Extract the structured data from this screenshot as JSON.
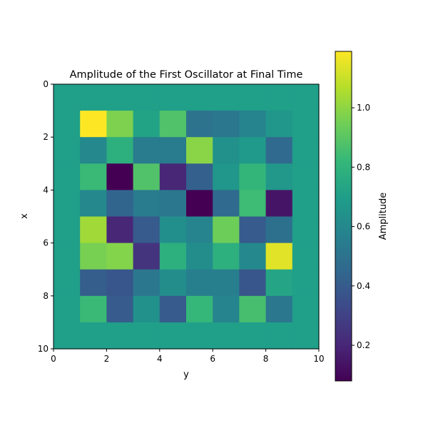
{
  "chart_data": {
    "type": "heatmap",
    "title": "Amplitude of the First Oscillator at Final Time",
    "xlabel": "y",
    "ylabel": "x",
    "xlim": [
      0,
      10
    ],
    "ylim": [
      10,
      0
    ],
    "x_ticks": [
      "0",
      "2",
      "4",
      "6",
      "8",
      "10"
    ],
    "y_ticks": [
      "0",
      "2",
      "4",
      "6",
      "8",
      "10"
    ],
    "colormap": "viridis",
    "colorbar": {
      "label": "Amplitude",
      "range": [
        0.08,
        1.19
      ],
      "ticks": [
        "0.2",
        "0.4",
        "0.6",
        "0.8",
        "1.0"
      ]
    },
    "grid": false,
    "values": [
      [
        0.7,
        0.7,
        0.7,
        0.7,
        0.7,
        0.7,
        0.7,
        0.7,
        0.7,
        0.7
      ],
      [
        0.7,
        1.19,
        0.97,
        0.72,
        0.88,
        0.5,
        0.52,
        0.58,
        0.66,
        0.7
      ],
      [
        0.7,
        0.6,
        0.78,
        0.54,
        0.54,
        0.99,
        0.64,
        0.68,
        0.46,
        0.7
      ],
      [
        0.7,
        0.83,
        0.08,
        0.88,
        0.2,
        0.42,
        0.66,
        0.81,
        0.67,
        0.7
      ],
      [
        0.7,
        0.6,
        0.44,
        0.54,
        0.52,
        0.08,
        0.46,
        0.84,
        0.14,
        0.7
      ],
      [
        0.7,
        1.03,
        0.2,
        0.4,
        0.63,
        0.58,
        0.94,
        0.4,
        0.49,
        0.7
      ],
      [
        0.7,
        0.96,
        0.98,
        0.25,
        0.78,
        0.62,
        0.78,
        0.6,
        1.14,
        0.7
      ],
      [
        0.7,
        0.41,
        0.38,
        0.52,
        0.62,
        0.56,
        0.56,
        0.38,
        0.73,
        0.7
      ],
      [
        0.7,
        0.83,
        0.4,
        0.64,
        0.4,
        0.82,
        0.58,
        0.86,
        0.52,
        0.7
      ],
      [
        0.7,
        0.7,
        0.7,
        0.7,
        0.7,
        0.7,
        0.7,
        0.7,
        0.7,
        0.7
      ]
    ]
  }
}
